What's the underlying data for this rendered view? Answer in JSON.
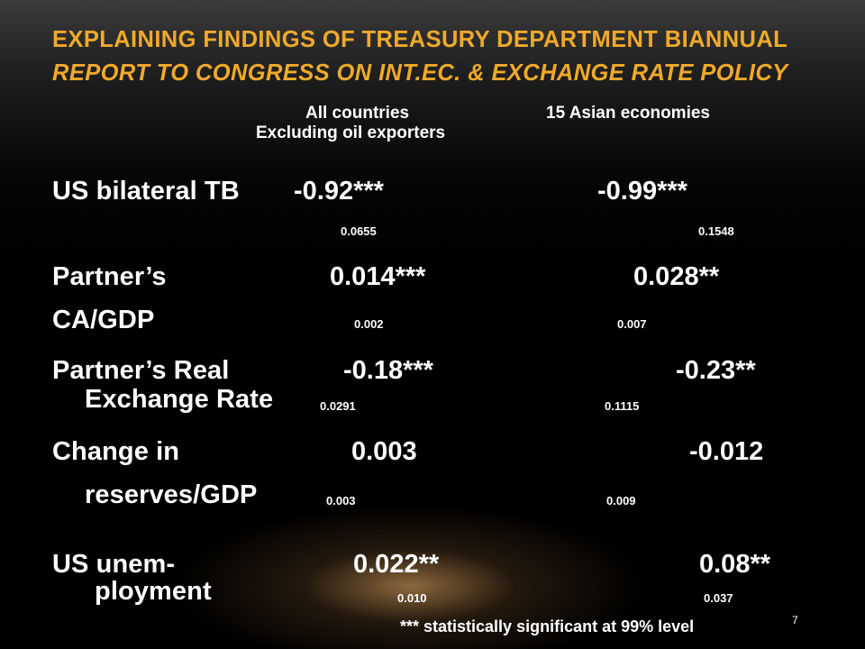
{
  "title": {
    "line1": "Explaining findings of Treasury Department biannual",
    "line2": "Report to Congress on Int.Ec. & Exchange Rate Policy"
  },
  "columns": {
    "col1_line1": "All countries",
    "col1_line2": "Excluding oil exporters",
    "col2": "15 Asian economies"
  },
  "rows": [
    {
      "label": "US bilateral  TB",
      "label2": "",
      "v1": "-0.92***",
      "se1": "0.0655",
      "v2": "-0.99***",
      "se2": "0.1548"
    },
    {
      "label": "Partner’s",
      "label2": "CA/GDP",
      "v1": "0.014***",
      "se1": "0.002",
      "v2": "0.028**",
      "se2": "0.007"
    },
    {
      "label": "Partner’s  Real",
      "label2": "Exchange  Rate",
      "v1": "-0.18***",
      "se1": "0.0291",
      "v2": "-0.23**",
      "se2": "0.1115"
    },
    {
      "label": "Change in",
      "label2": "reserves/GDP",
      "v1": "0.003",
      "se1": "0.003",
      "v2": "-0.012",
      "se2": "0.009"
    },
    {
      "label": "US unem-",
      "label2": "ployment",
      "v1": "0.022**",
      "se1": "0.010",
      "v2": "0.08**",
      "se2": "0.037"
    }
  ],
  "footnote": "*** statistically significant at 99% level",
  "page_number": "7",
  "colors": {
    "title": "#f0a92b",
    "text": "#ffffff",
    "background": "#000000"
  }
}
